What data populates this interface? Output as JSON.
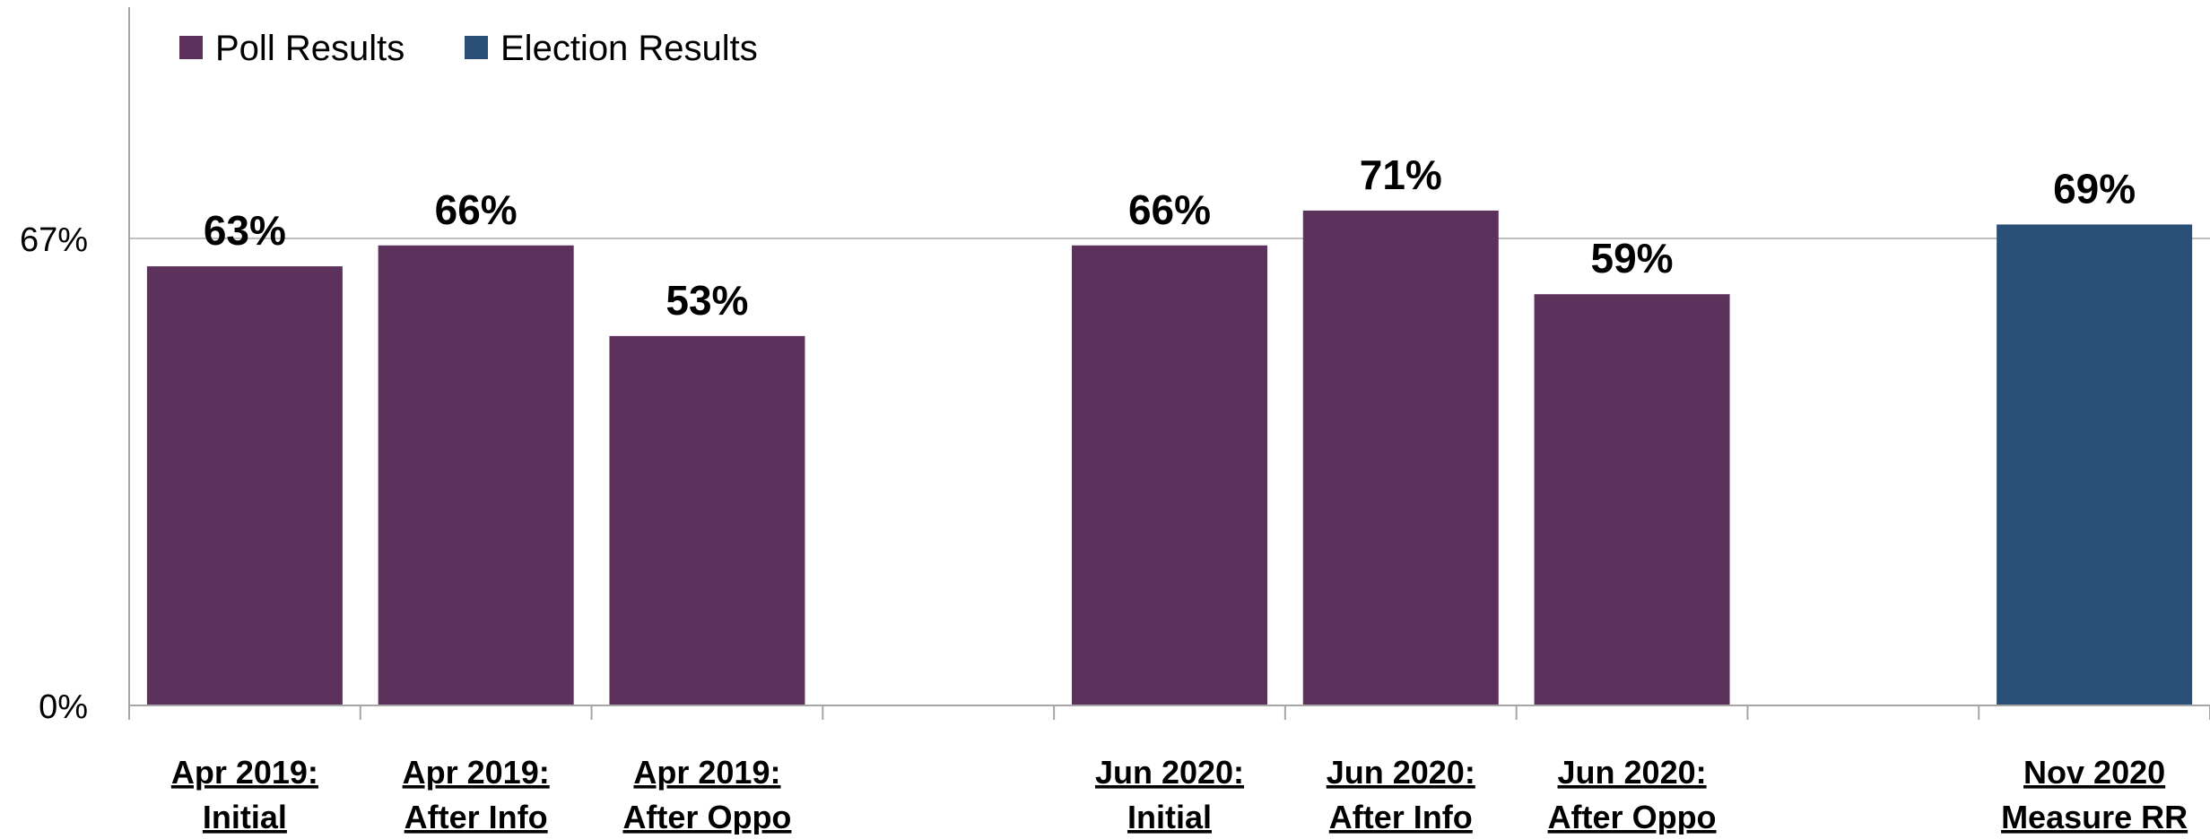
{
  "chart_data": {
    "type": "bar",
    "title": "",
    "xlabel": "",
    "ylabel": "",
    "ylim": [
      0,
      100
    ],
    "yticks": [
      {
        "value": 0,
        "label": "0%"
      },
      {
        "value": 67,
        "label": "67%"
      }
    ],
    "legend": {
      "placement": "top-left",
      "entries": [
        {
          "name": "Poll Results",
          "color": "#5c315c"
        },
        {
          "name": "Election Results",
          "color": "#2a5078"
        }
      ]
    },
    "categories": [
      [
        "Apr 2019:",
        "Initial"
      ],
      [
        "Apr 2019:",
        "After Info"
      ],
      [
        "Apr 2019:",
        "After Oppo"
      ],
      [
        "",
        ""
      ],
      [
        "Jun 2020:",
        "Initial"
      ],
      [
        "Jun 2020:",
        "After Info"
      ],
      [
        "Jun 2020:",
        "After Oppo"
      ],
      [
        "",
        ""
      ],
      [
        "Nov 2020",
        "Measure RR"
      ]
    ],
    "series": [
      {
        "name": "Poll Results",
        "color": "#5c315c",
        "values": [
          63,
          66,
          53,
          null,
          66,
          71,
          59,
          null,
          null
        ],
        "labels": [
          "63%",
          "66%",
          "53%",
          "",
          "66%",
          "71%",
          "59%",
          "",
          ""
        ]
      },
      {
        "name": "Election Results",
        "color": "#2a5078",
        "values": [
          null,
          null,
          null,
          null,
          null,
          null,
          null,
          null,
          69
        ],
        "labels": [
          "",
          "",
          "",
          "",
          "",
          "",
          "",
          "",
          "69%"
        ]
      }
    ],
    "grid": {
      "horizontal": true,
      "at": [
        67
      ]
    }
  }
}
